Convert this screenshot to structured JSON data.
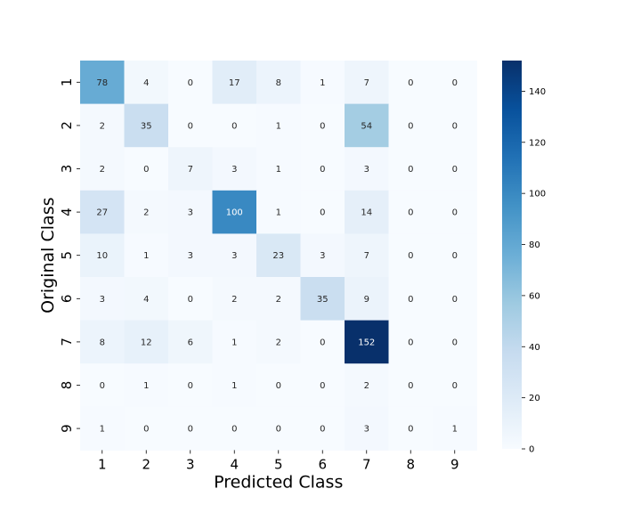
{
  "chart_data": {
    "type": "heatmap",
    "xlabel": "Predicted Class",
    "ylabel": "Original Class",
    "x_categories": [
      "1",
      "2",
      "3",
      "4",
      "5",
      "6",
      "7",
      "8",
      "9"
    ],
    "y_categories": [
      "1",
      "2",
      "3",
      "4",
      "5",
      "6",
      "7",
      "8",
      "9"
    ],
    "matrix": [
      [
        78,
        4,
        0,
        17,
        8,
        1,
        7,
        0,
        0
      ],
      [
        2,
        35,
        0,
        0,
        1,
        0,
        54,
        0,
        0
      ],
      [
        2,
        0,
        7,
        3,
        1,
        0,
        3,
        0,
        0
      ],
      [
        27,
        2,
        3,
        100,
        1,
        0,
        14,
        0,
        0
      ],
      [
        10,
        1,
        3,
        3,
        23,
        3,
        7,
        0,
        0
      ],
      [
        3,
        4,
        0,
        2,
        2,
        35,
        9,
        0,
        0
      ],
      [
        8,
        12,
        6,
        1,
        2,
        0,
        152,
        0,
        0
      ],
      [
        0,
        1,
        0,
        1,
        0,
        0,
        2,
        0,
        0
      ],
      [
        1,
        0,
        0,
        0,
        0,
        0,
        3,
        0,
        1
      ]
    ],
    "colormap": "Blues",
    "colorbar": {
      "range": [
        0,
        152
      ],
      "ticks": [
        0,
        20,
        40,
        60,
        80,
        100,
        120,
        140
      ]
    }
  }
}
